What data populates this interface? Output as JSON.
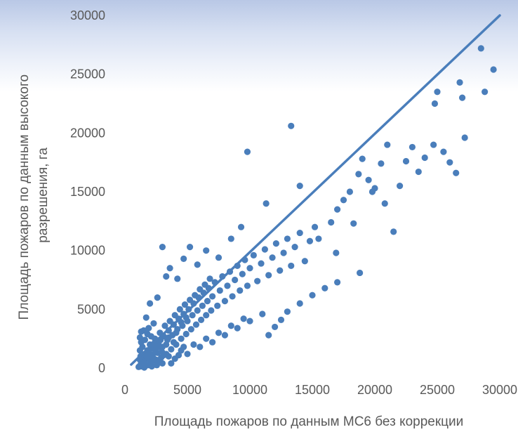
{
  "chart_data": {
    "type": "scatter",
    "title": "",
    "xlabel": "Площадь пожаров по данным MC6 без коррекции",
    "ylabel_lines": [
      "Площадь пожаров по данным высокого",
      "разрешения, га"
    ],
    "xlim": [
      0,
      30000
    ],
    "ylim": [
      0,
      30000
    ],
    "xticks": [
      "0",
      "5000",
      "10000",
      "15000",
      "20000",
      "25000",
      "30000"
    ],
    "yticks": [
      "0",
      "5000",
      "10000",
      "15000",
      "20000",
      "25000",
      "30000"
    ],
    "grid": false,
    "legend": "none",
    "colors": {
      "points": "#4a7ebb",
      "line": "#4a7ebb"
    },
    "reference_line": {
      "from": [
        500,
        300
      ],
      "to": [
        30000,
        30000
      ]
    },
    "points": [
      [
        1200,
        200
      ],
      [
        1300,
        400
      ],
      [
        1400,
        600
      ],
      [
        1500,
        900
      ],
      [
        1600,
        1200
      ],
      [
        1700,
        300
      ],
      [
        1800,
        1500
      ],
      [
        1900,
        800
      ],
      [
        2000,
        2000
      ],
      [
        2100,
        500
      ],
      [
        2200,
        1100
      ],
      [
        2300,
        1700
      ],
      [
        2400,
        2500
      ],
      [
        2500,
        700
      ],
      [
        2600,
        1300
      ],
      [
        2700,
        2200
      ],
      [
        2800,
        3000
      ],
      [
        2900,
        900
      ],
      [
        3000,
        1800
      ],
      [
        3100,
        2700
      ],
      [
        3200,
        3600
      ],
      [
        3300,
        1200
      ],
      [
        3400,
        2400
      ],
      [
        3500,
        3200
      ],
      [
        3600,
        4000
      ],
      [
        3700,
        1600
      ],
      [
        3800,
        2800
      ],
      [
        3900,
        3700
      ],
      [
        4000,
        4500
      ],
      [
        4100,
        2000
      ],
      [
        4200,
        3300
      ],
      [
        4300,
        4200
      ],
      [
        4400,
        5000
      ],
      [
        4500,
        2500
      ],
      [
        4600,
        3600
      ],
      [
        4700,
        4600
      ],
      [
        4800,
        5400
      ],
      [
        4900,
        2900
      ],
      [
        5000,
        4000
      ],
      [
        5100,
        5000
      ],
      [
        5200,
        5800
      ],
      [
        5300,
        3300
      ],
      [
        5400,
        4500
      ],
      [
        5500,
        5500
      ],
      [
        5600,
        6200
      ],
      [
        5700,
        3700
      ],
      [
        5800,
        4900
      ],
      [
        5900,
        6000
      ],
      [
        6000,
        6700
      ],
      [
        6100,
        4100
      ],
      [
        6200,
        5300
      ],
      [
        6300,
        6400
      ],
      [
        6400,
        7100
      ],
      [
        6500,
        4500
      ],
      [
        6600,
        5700
      ],
      [
        6700,
        6800
      ],
      [
        6800,
        7600
      ],
      [
        6900,
        4900
      ],
      [
        7000,
        6100
      ],
      [
        7200,
        7300
      ],
      [
        7400,
        5300
      ],
      [
        7600,
        6600
      ],
      [
        7800,
        7800
      ],
      [
        8000,
        5700
      ],
      [
        8200,
        7000
      ],
      [
        8400,
        8200
      ],
      [
        8600,
        6100
      ],
      [
        8800,
        7500
      ],
      [
        9000,
        8700
      ],
      [
        9200,
        6600
      ],
      [
        9400,
        8000
      ],
      [
        9600,
        9200
      ],
      [
        9800,
        7000
      ],
      [
        10000,
        8500
      ],
      [
        10300,
        9600
      ],
      [
        10600,
        7400
      ],
      [
        10900,
        8900
      ],
      [
        11200,
        10100
      ],
      [
        11500,
        7900
      ],
      [
        11800,
        9400
      ],
      [
        12100,
        10600
      ],
      [
        12400,
        8300
      ],
      [
        12700,
        9800
      ],
      [
        13000,
        11000
      ],
      [
        13300,
        8700
      ],
      [
        13600,
        10300
      ],
      [
        14000,
        11500
      ],
      [
        14400,
        9100
      ],
      [
        14800,
        10800
      ],
      [
        15200,
        12000
      ],
      [
        1500,
        3200
      ],
      [
        1700,
        4300
      ],
      [
        2000,
        5500
      ],
      [
        2300,
        3800
      ],
      [
        2600,
        6000
      ],
      [
        3000,
        10300
      ],
      [
        3300,
        7800
      ],
      [
        3600,
        8500
      ],
      [
        4200,
        7600
      ],
      [
        4700,
        9300
      ],
      [
        5200,
        10300
      ],
      [
        5800,
        8800
      ],
      [
        6500,
        10000
      ],
      [
        7500,
        9400
      ],
      [
        8500,
        11000
      ],
      [
        9300,
        12000
      ],
      [
        9800,
        18400
      ],
      [
        11300,
        14000
      ],
      [
        13300,
        20600
      ],
      [
        14000,
        15500
      ],
      [
        2000,
        1000
      ],
      [
        2500,
        600
      ],
      [
        3000,
        400
      ],
      [
        3500,
        1000
      ],
      [
        4000,
        800
      ],
      [
        4500,
        1500
      ],
      [
        5000,
        1200
      ],
      [
        5500,
        2000
      ],
      [
        6000,
        1800
      ],
      [
        6500,
        2500
      ],
      [
        7000,
        2200
      ],
      [
        7500,
        3000
      ],
      [
        8000,
        2800
      ],
      [
        8500,
        3600
      ],
      [
        9000,
        3400
      ],
      [
        9500,
        4200
      ],
      [
        10000,
        4000
      ],
      [
        11000,
        4600
      ],
      [
        11500,
        2800
      ],
      [
        12000,
        3500
      ],
      [
        12500,
        4100
      ],
      [
        13000,
        4800
      ],
      [
        14000,
        5500
      ],
      [
        15000,
        6200
      ],
      [
        16000,
        6800
      ],
      [
        17000,
        7300
      ],
      [
        18800,
        8100
      ],
      [
        15500,
        11000
      ],
      [
        16500,
        12400
      ],
      [
        17000,
        13500
      ],
      [
        17500,
        14300
      ],
      [
        18000,
        15000
      ],
      [
        18700,
        16500
      ],
      [
        19000,
        17800
      ],
      [
        19500,
        16000
      ],
      [
        20000,
        15300
      ],
      [
        20500,
        17400
      ],
      [
        21000,
        19000
      ],
      [
        21500,
        11600
      ],
      [
        22000,
        15500
      ],
      [
        22500,
        17600
      ],
      [
        23000,
        18800
      ],
      [
        23500,
        16700
      ],
      [
        24000,
        17900
      ],
      [
        24700,
        19000
      ],
      [
        25000,
        23500
      ],
      [
        25500,
        18400
      ],
      [
        26000,
        17500
      ],
      [
        26500,
        16600
      ],
      [
        26800,
        24300
      ],
      [
        27000,
        23000
      ],
      [
        27200,
        19600
      ],
      [
        28500,
        27200
      ],
      [
        28800,
        23500
      ],
      [
        29500,
        25400
      ],
      [
        24800,
        22500
      ],
      [
        19800,
        15000
      ],
      [
        18300,
        12300
      ],
      [
        20800,
        14000
      ],
      [
        16900,
        9800
      ],
      [
        1100,
        100
      ],
      [
        1200,
        700
      ],
      [
        1250,
        1000
      ],
      [
        1350,
        150
      ],
      [
        1450,
        350
      ],
      [
        1550,
        50
      ],
      [
        1650,
        700
      ],
      [
        1750,
        950
      ],
      [
        1850,
        250
      ],
      [
        1950,
        1300
      ],
      [
        2050,
        1650
      ],
      [
        2150,
        150
      ],
      [
        2250,
        900
      ],
      [
        2350,
        2100
      ],
      [
        2450,
        1400
      ],
      [
        2550,
        250
      ],
      [
        2650,
        1800
      ],
      [
        2750,
        600
      ],
      [
        2850,
        2400
      ],
      [
        2950,
        1400
      ],
      [
        1200,
        2600
      ],
      [
        1300,
        3100
      ],
      [
        1400,
        1800
      ],
      [
        1600,
        2400
      ],
      [
        1800,
        2900
      ],
      [
        1200,
        1500
      ],
      [
        1300,
        2200
      ],
      [
        1500,
        500
      ],
      [
        1900,
        3400
      ],
      [
        2100,
        2700
      ],
      [
        3100,
        1100
      ],
      [
        3300,
        2000
      ],
      [
        3500,
        2600
      ],
      [
        3700,
        400
      ],
      [
        3900,
        2200
      ],
      [
        4100,
        3000
      ],
      [
        4300,
        1100
      ],
      [
        4500,
        3900
      ],
      [
        4700,
        1800
      ],
      [
        4900,
        4300
      ]
    ]
  }
}
